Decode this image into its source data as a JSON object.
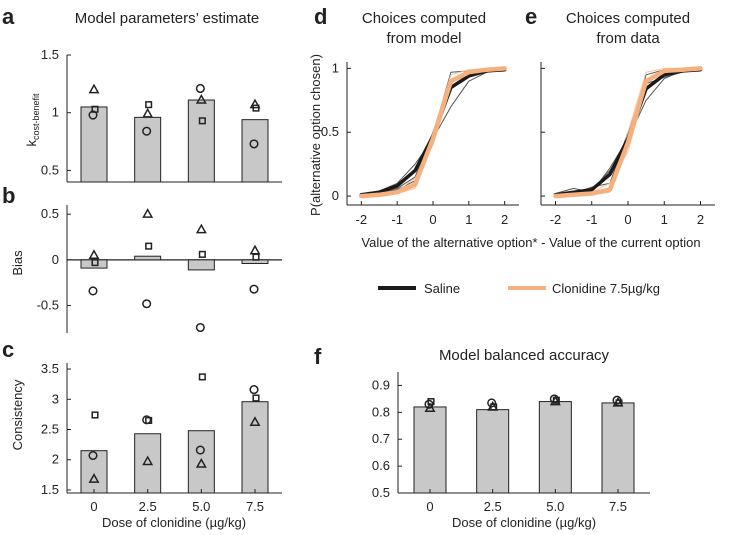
{
  "figure": {
    "dose_label": "Dose of clonidine (µg/kg)",
    "doses": [
      "0",
      "2.5",
      "5.0",
      "7.5"
    ]
  },
  "chart_data": [
    {
      "panel": "a",
      "type": "bar",
      "title": "Model parameters’ estimate",
      "ylabel": "k",
      "ylabel_sub": "cost-benefit",
      "ylim": [
        0.4,
        1.5
      ],
      "yticks": [
        0.5,
        1,
        1.5
      ],
      "ytick_labels": [
        "0.5",
        "1",
        "1.5"
      ],
      "categories": [
        "0",
        "2.5",
        "5.0",
        "7.5"
      ],
      "values": [
        1.05,
        0.96,
        1.11,
        0.94
      ],
      "points": {
        "triangle": [
          1.2,
          0.99,
          1.11,
          1.07
        ],
        "square": [
          1.03,
          1.07,
          0.93,
          1.04
        ],
        "circle": [
          0.98,
          0.84,
          1.21,
          0.73
        ]
      },
      "show_xticklabels": false
    },
    {
      "panel": "b",
      "type": "bar",
      "title": "",
      "ylabel": "Bias",
      "ylim": [
        -0.8,
        0.6
      ],
      "yticks": [
        -0.5,
        0,
        0.5
      ],
      "ytick_labels": [
        "-0.5",
        "0",
        "0.5"
      ],
      "categories": [
        "0",
        "2.5",
        "5.0",
        "7.5"
      ],
      "values": [
        -0.09,
        0.04,
        -0.11,
        -0.04
      ],
      "points": {
        "triangle": [
          0.05,
          0.5,
          0.33,
          0.1
        ],
        "square": [
          -0.03,
          0.15,
          0.06,
          0.03
        ],
        "circle": [
          -0.34,
          -0.48,
          -0.74,
          -0.32
        ]
      },
      "zero_line": true,
      "show_xticklabels": false
    },
    {
      "panel": "c",
      "type": "bar",
      "title": "",
      "ylabel": "Consistency",
      "ylim": [
        1.45,
        3.6
      ],
      "yticks": [
        1.5,
        2,
        2.5,
        3,
        3.5
      ],
      "ytick_labels": [
        "1.5",
        "2",
        "2.5",
        "3",
        "3.5"
      ],
      "categories": [
        "0",
        "2.5",
        "5.0",
        "7.5"
      ],
      "values": [
        2.15,
        2.43,
        2.48,
        2.96
      ],
      "points": {
        "triangle": [
          1.68,
          1.97,
          1.93,
          2.62
        ],
        "square": [
          2.74,
          2.65,
          3.37,
          3.02
        ],
        "circle": [
          2.07,
          2.66,
          2.16,
          3.16
        ]
      },
      "show_xticklabels": true
    },
    {
      "panel": "d",
      "type": "line",
      "title": "Choices computed",
      "title2": "from model",
      "ylabel": "P(alternative option chosen)",
      "xlim": [
        -2.4,
        2.4
      ],
      "ylim": [
        -0.07,
        1.05
      ],
      "xticks": [
        -2,
        -1,
        0,
        1,
        2
      ],
      "xtick_labels": [
        "-2",
        "-1",
        "0",
        "1",
        "2"
      ],
      "yticks": [
        0,
        0.5,
        1
      ],
      "ytick_labels": [
        "0",
        "0.5",
        "1"
      ],
      "x": [
        -2,
        -1.5,
        -1,
        -0.5,
        0,
        0.5,
        1,
        1.5,
        2
      ],
      "series": [
        {
          "name": "Saline",
          "role": "mean",
          "values": [
            0.01,
            0.03,
            0.08,
            0.2,
            0.47,
            0.85,
            0.94,
            0.98,
            0.99
          ]
        },
        {
          "name": "Clonidine 7.5µg/kg",
          "role": "mean",
          "values": [
            0.0,
            0.01,
            0.03,
            0.09,
            0.45,
            0.9,
            0.97,
            0.99,
            1.0
          ]
        },
        {
          "name": "Saline",
          "role": "individual",
          "values": [
            0.02,
            0.04,
            0.1,
            0.25,
            0.45,
            0.7,
            0.9,
            0.97,
            0.99
          ]
        },
        {
          "name": "Saline",
          "role": "individual",
          "values": [
            0.0,
            0.02,
            0.06,
            0.15,
            0.5,
            0.9,
            0.96,
            0.98,
            0.99
          ]
        },
        {
          "name": "Saline",
          "role": "individual",
          "values": [
            0.01,
            0.02,
            0.05,
            0.12,
            0.48,
            0.97,
            0.98,
            0.99,
            1.0
          ]
        },
        {
          "name": "Clonidine 7.5µg/kg",
          "role": "individual",
          "values": [
            0.0,
            0.01,
            0.04,
            0.14,
            0.4,
            0.85,
            0.95,
            0.98,
            0.99
          ]
        },
        {
          "name": "Clonidine 7.5µg/kg",
          "role": "individual",
          "values": [
            0.0,
            0.0,
            0.02,
            0.06,
            0.5,
            0.95,
            0.99,
            1.0,
            1.0
          ]
        }
      ],
      "xlabel": "Value of the alternative option* - Value of the current option"
    },
    {
      "panel": "e",
      "type": "line",
      "title": "Choices computed",
      "title2": "from data",
      "xlim": [
        -2.4,
        2.4
      ],
      "ylim": [
        -0.07,
        1.05
      ],
      "xticks": [
        -2,
        -1,
        0,
        1,
        2
      ],
      "xtick_labels": [
        "-2",
        "-1",
        "0",
        "1",
        "2"
      ],
      "yticks": [
        0,
        0.5,
        1
      ],
      "x": [
        -2,
        -1.5,
        -1,
        -0.5,
        0,
        0.5,
        1,
        1.5,
        2
      ],
      "series": [
        {
          "name": "Saline",
          "role": "mean",
          "values": [
            0.01,
            0.03,
            0.05,
            0.17,
            0.45,
            0.84,
            0.95,
            0.98,
            0.99
          ]
        },
        {
          "name": "Clonidine 7.5µg/kg",
          "role": "mean",
          "values": [
            0.0,
            0.01,
            0.02,
            0.05,
            0.42,
            0.9,
            0.98,
            0.99,
            1.0
          ]
        },
        {
          "name": "Saline",
          "role": "individual",
          "values": [
            0.02,
            0.06,
            0.03,
            0.22,
            0.45,
            0.75,
            0.92,
            0.98,
            0.99
          ]
        },
        {
          "name": "Saline",
          "role": "individual",
          "values": [
            0.0,
            0.02,
            0.07,
            0.1,
            0.5,
            0.88,
            0.93,
            0.97,
            0.99
          ]
        },
        {
          "name": "Saline",
          "role": "individual",
          "values": [
            0.01,
            0.01,
            0.04,
            0.2,
            0.44,
            0.95,
            0.99,
            0.99,
            1.0
          ]
        },
        {
          "name": "Clonidine 7.5µg/kg",
          "role": "individual",
          "values": [
            0.0,
            0.01,
            0.03,
            0.1,
            0.35,
            0.85,
            0.96,
            0.98,
            0.99
          ]
        },
        {
          "name": "Clonidine 7.5µg/kg",
          "role": "individual",
          "values": [
            0.0,
            0.0,
            0.01,
            0.03,
            0.5,
            0.97,
            1.0,
            1.0,
            1.0
          ]
        }
      ]
    },
    {
      "panel": "f",
      "type": "bar",
      "title": "Model balanced accuracy",
      "ylim": [
        0.5,
        0.95
      ],
      "yticks": [
        0.5,
        0.6,
        0.7,
        0.8,
        0.9
      ],
      "ytick_labels": [
        "0.5",
        "0.6",
        "0.7",
        "0.8",
        "0.9"
      ],
      "categories": [
        "0",
        "2.5",
        "5.0",
        "7.5"
      ],
      "values": [
        0.82,
        0.81,
        0.84,
        0.835
      ],
      "points": {
        "triangle": [
          0.815,
          0.82,
          0.84,
          0.835
        ],
        "square": [
          0.84,
          0.82,
          0.845,
          0.835
        ],
        "circle": [
          0.83,
          0.835,
          0.85,
          0.845
        ]
      },
      "show_xticklabels": true
    }
  ],
  "legend": {
    "items": [
      {
        "label": "Saline",
        "color": "#1a1a1a"
      },
      {
        "label": "Clonidine 7.5µg/kg",
        "color": "#f5b07e"
      }
    ]
  },
  "colors": {
    "bar_fill": "#c8c8c8",
    "axis": "#222222",
    "saline": "#1a1a1a",
    "saline_thin": "#555555",
    "clonidine": "#f5b07e",
    "clonidine_thin": "#f7c7a2"
  }
}
